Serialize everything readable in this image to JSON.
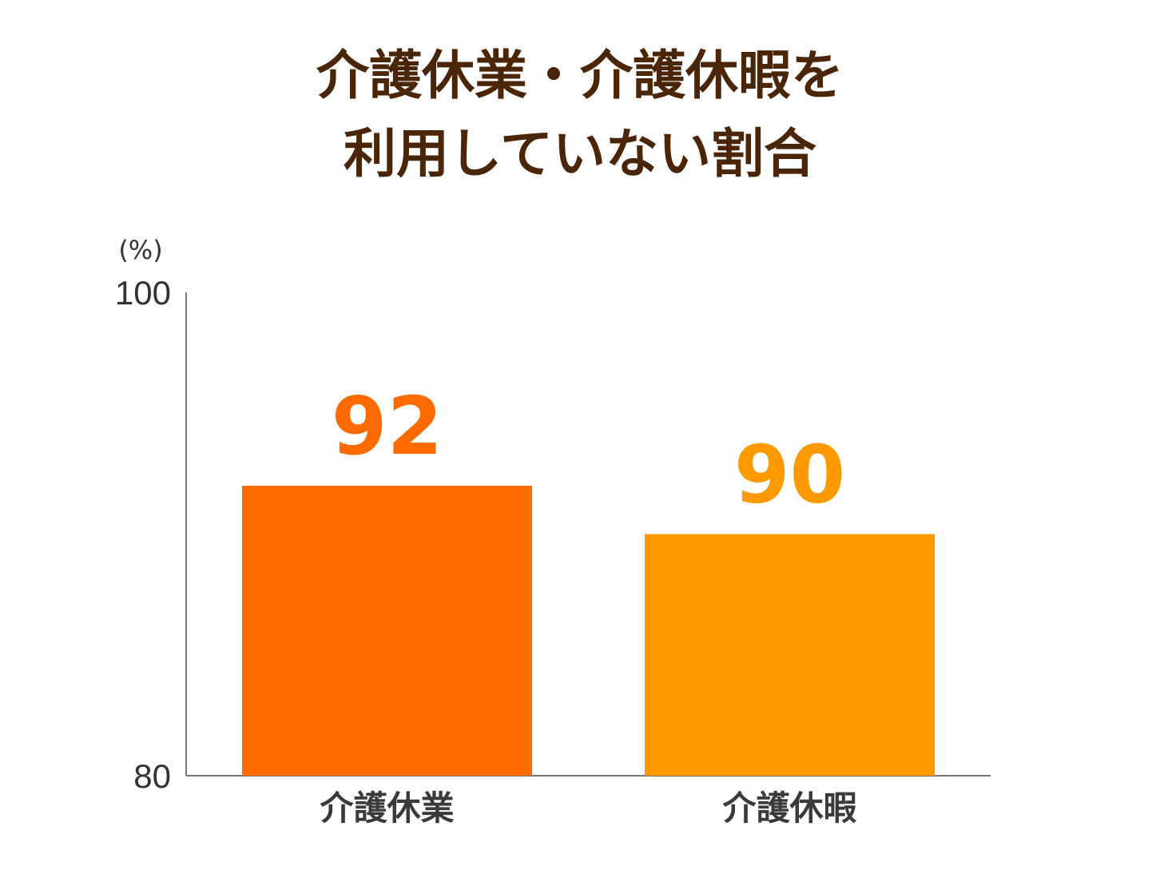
{
  "title_lines": [
    "介護休業・介護休暇を",
    "利用していない割合"
  ],
  "colors": {
    "title": "#4a2508",
    "axis": "#777777",
    "series": [
      "#ff6a00",
      "#ff9900"
    ]
  },
  "chart_data": {
    "type": "bar",
    "title": "介護休業・介護休暇を利用していない割合",
    "categories": [
      "介護休業",
      "介護休暇"
    ],
    "values": [
      92,
      90
    ],
    "value_labels": [
      "92",
      "90"
    ],
    "ylabel": "(%)",
    "ylim": [
      80,
      100
    ],
    "yticks": [
      "80",
      "100"
    ],
    "grid": false,
    "legend": "none"
  }
}
